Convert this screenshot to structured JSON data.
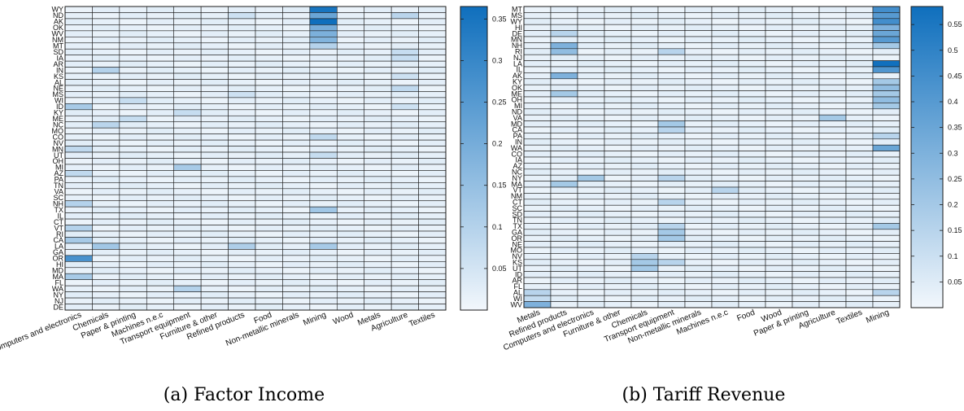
{
  "colors": {
    "low": "#f2f7fc",
    "high": "#0f6fbd",
    "grid": "#1a1a1a"
  },
  "chart_data": [
    {
      "type": "heatmap",
      "caption": "(a) Factor Income",
      "rows": [
        "WY",
        "ND",
        "AK",
        "OK",
        "WV",
        "NM",
        "MT",
        "SD",
        "IA",
        "AR",
        "IN",
        "KS",
        "AL",
        "NE",
        "MS",
        "WI",
        "ID",
        "KY",
        "ME",
        "NC",
        "MO",
        "CO",
        "NV",
        "MN",
        "UT",
        "OH",
        "MI",
        "AZ",
        "PA",
        "TN",
        "VA",
        "SC",
        "NH",
        "TX",
        "IL",
        "CT",
        "VT",
        "RI",
        "CA",
        "LA",
        "GA",
        "OR",
        "HI",
        "MD",
        "MA",
        "FL",
        "WA",
        "NY",
        "NJ",
        "DE"
      ],
      "columns": [
        "Computers and electronics",
        "Chemicals",
        "Paper & printing",
        "Machines n.e.c",
        "Transport equipment",
        "Furniture & other",
        "Refined products",
        "Food",
        "Non-metallic minerals",
        "Mining",
        "Wood",
        "Metals",
        "Agriculture",
        "Textiles"
      ],
      "colorbar": {
        "min": 0,
        "max": 0.365,
        "ticks": [
          0.05,
          0.1,
          0.15,
          0.2,
          0.25,
          0.3,
          0.35
        ]
      },
      "highlights": [
        {
          "row": "WY",
          "col": "Mining",
          "value": 0.35
        },
        {
          "row": "ND",
          "col": "Mining",
          "value": 0.22
        },
        {
          "row": "AK",
          "col": "Mining",
          "value": 0.37
        },
        {
          "row": "OK",
          "col": "Mining",
          "value": 0.2
        },
        {
          "row": "WV",
          "col": "Mining",
          "value": 0.19
        },
        {
          "row": "NM",
          "col": "Mining",
          "value": 0.18
        },
        {
          "row": "MT",
          "col": "Mining",
          "value": 0.1
        },
        {
          "row": "ND",
          "col": "Agriculture",
          "value": 0.09
        },
        {
          "row": "SD",
          "col": "Agriculture",
          "value": 0.07
        },
        {
          "row": "IA",
          "col": "Agriculture",
          "value": 0.07
        },
        {
          "row": "NE",
          "col": "Agriculture",
          "value": 0.08
        },
        {
          "row": "KS",
          "col": "Agriculture",
          "value": 0.06
        },
        {
          "row": "ID",
          "col": "Agriculture",
          "value": 0.06
        },
        {
          "row": "IN",
          "col": "Chemicals",
          "value": 0.1
        },
        {
          "row": "NC",
          "col": "Chemicals",
          "value": 0.09
        },
        {
          "row": "LA",
          "col": "Chemicals",
          "value": 0.13
        },
        {
          "row": "LA",
          "col": "Refined products",
          "value": 0.11
        },
        {
          "row": "LA",
          "col": "Mining",
          "value": 0.12
        },
        {
          "row": "TX",
          "col": "Mining",
          "value": 0.13
        },
        {
          "row": "CO",
          "col": "Mining",
          "value": 0.08
        },
        {
          "row": "UT",
          "col": "Mining",
          "value": 0.07
        },
        {
          "row": "MI",
          "col": "Transport equipment",
          "value": 0.12
        },
        {
          "row": "KY",
          "col": "Transport equipment",
          "value": 0.07
        },
        {
          "row": "OR",
          "col": "Computers and electronics",
          "value": 0.27
        },
        {
          "row": "ID",
          "col": "Computers and electronics",
          "value": 0.12
        },
        {
          "row": "MA",
          "col": "Computers and electronics",
          "value": 0.12
        },
        {
          "row": "CA",
          "col": "Computers and electronics",
          "value": 0.12
        },
        {
          "row": "VT",
          "col": "Computers and electronics",
          "value": 0.1
        },
        {
          "row": "NH",
          "col": "Computers and electronics",
          "value": 0.1
        },
        {
          "row": "MN",
          "col": "Computers and electronics",
          "value": 0.08
        },
        {
          "row": "AZ",
          "col": "Computers and electronics",
          "value": 0.08
        },
        {
          "row": "WA",
          "col": "Transport equipment",
          "value": 0.1
        },
        {
          "row": "WI",
          "col": "Paper & printing",
          "value": 0.07
        },
        {
          "row": "ME",
          "col": "Paper & printing",
          "value": 0.07
        },
        {
          "row": "ND",
          "col": "Refined products",
          "value": 0.06
        },
        {
          "row": "MS",
          "col": "Refined products",
          "value": 0.06
        }
      ]
    },
    {
      "type": "heatmap",
      "caption": "(b) Tariff Revenue",
      "rows": [
        "MT",
        "MS",
        "WY",
        "HI",
        "DE",
        "MN",
        "NH",
        "RI",
        "NJ",
        "LA",
        "IL",
        "AK",
        "KY",
        "OK",
        "ME",
        "OH",
        "MI",
        "ND",
        "VA",
        "MD",
        "CA",
        "PA",
        "IN",
        "WA",
        "CO",
        "IA",
        "AZ",
        "NC",
        "NY",
        "MA",
        "VT",
        "NM",
        "CT",
        "SC",
        "SD",
        "TN",
        "TX",
        "GA",
        "OR",
        "NE",
        "MO",
        "NV",
        "KS",
        "UT",
        "ID",
        "AR",
        "FL",
        "AL",
        "WI",
        "WV"
      ],
      "columns": [
        "Metals",
        "Refined products",
        "Computers and electronics",
        "Furniture & other",
        "Chemicals",
        "Transport equipment",
        "Non-metallic minerals",
        "Machines n.e.c",
        "Food",
        "Wood",
        "Paper & printing",
        "Agriculture",
        "Textiles",
        "Mining"
      ],
      "colorbar": {
        "min": 0,
        "max": 0.585,
        "ticks": [
          0.05,
          0.1,
          0.15,
          0.2,
          0.25,
          0.3,
          0.35,
          0.4,
          0.45,
          0.5,
          0.55
        ]
      },
      "highlights": [
        {
          "row": "MT",
          "col": "Mining",
          "value": 0.45
        },
        {
          "row": "MS",
          "col": "Mining",
          "value": 0.4
        },
        {
          "row": "WY",
          "col": "Mining",
          "value": 0.45
        },
        {
          "row": "HI",
          "col": "Mining",
          "value": 0.3
        },
        {
          "row": "DE",
          "col": "Mining",
          "value": 0.35
        },
        {
          "row": "MN",
          "col": "Mining",
          "value": 0.4
        },
        {
          "row": "NH",
          "col": "Mining",
          "value": 0.2
        },
        {
          "row": "LA",
          "col": "Mining",
          "value": 0.58
        },
        {
          "row": "IL",
          "col": "Mining",
          "value": 0.42
        },
        {
          "row": "KY",
          "col": "Mining",
          "value": 0.2
        },
        {
          "row": "OK",
          "col": "Mining",
          "value": 0.25
        },
        {
          "row": "ME",
          "col": "Mining",
          "value": 0.2
        },
        {
          "row": "OH",
          "col": "Mining",
          "value": 0.25
        },
        {
          "row": "MI",
          "col": "Mining",
          "value": 0.2
        },
        {
          "row": "WA",
          "col": "Mining",
          "value": 0.35
        },
        {
          "row": "PA",
          "col": "Mining",
          "value": 0.15
        },
        {
          "row": "TX",
          "col": "Mining",
          "value": 0.2
        },
        {
          "row": "AL",
          "col": "Mining",
          "value": 0.15
        },
        {
          "row": "NH",
          "col": "Refined products",
          "value": 0.3
        },
        {
          "row": "RI",
          "col": "Refined products",
          "value": 0.25
        },
        {
          "row": "AK",
          "col": "Refined products",
          "value": 0.3
        },
        {
          "row": "ME",
          "col": "Refined products",
          "value": 0.2
        },
        {
          "row": "MA",
          "col": "Refined products",
          "value": 0.2
        },
        {
          "row": "DE",
          "col": "Refined products",
          "value": 0.15
        },
        {
          "row": "NY",
          "col": "Computers and electronics",
          "value": 0.2
        },
        {
          "row": "RI",
          "col": "Transport equipment",
          "value": 0.15
        },
        {
          "row": "MD",
          "col": "Transport equipment",
          "value": 0.2
        },
        {
          "row": "CA",
          "col": "Transport equipment",
          "value": 0.15
        },
        {
          "row": "NY",
          "col": "Transport equipment",
          "value": 0.15
        },
        {
          "row": "CT",
          "col": "Transport equipment",
          "value": 0.15
        },
        {
          "row": "TX",
          "col": "Transport equipment",
          "value": 0.15
        },
        {
          "row": "GA",
          "col": "Transport equipment",
          "value": 0.2
        },
        {
          "row": "OR",
          "col": "Transport equipment",
          "value": 0.2
        },
        {
          "row": "KS",
          "col": "Transport equipment",
          "value": 0.15
        },
        {
          "row": "NV",
          "col": "Chemicals",
          "value": 0.15
        },
        {
          "row": "KS",
          "col": "Chemicals",
          "value": 0.2
        },
        {
          "row": "UT",
          "col": "Chemicals",
          "value": 0.2
        },
        {
          "row": "VA",
          "col": "Agriculture",
          "value": 0.2
        },
        {
          "row": "VT",
          "col": "Machines n.e.c",
          "value": 0.15
        },
        {
          "row": "WV",
          "col": "Metals",
          "value": 0.3
        },
        {
          "row": "WI",
          "col": "Metals",
          "value": 0.12
        },
        {
          "row": "AL",
          "col": "Metals",
          "value": 0.15
        }
      ]
    }
  ]
}
